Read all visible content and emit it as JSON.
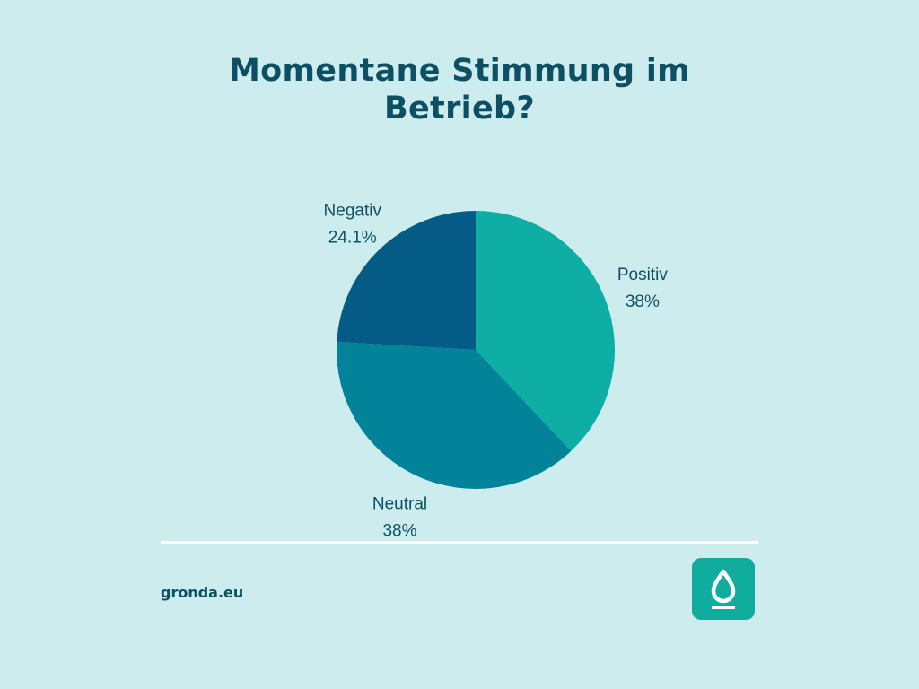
{
  "title": "Momentane Stimmung im Betrieb?",
  "brand": "gronda.eu",
  "icons": {
    "logo": "water-drop-icon"
  },
  "colors": {
    "background": "#cdeced",
    "text": "#0d5064",
    "positive": "#0eaea4",
    "neutral": "#02839a",
    "negative": "#035b86",
    "logo": "#10ad9e"
  },
  "chart_data": {
    "type": "pie",
    "title": "Momentane Stimmung im Betrieb?",
    "slices": [
      {
        "label": "Positiv",
        "value": 38,
        "value_label": "38%",
        "color": "#0eaea4"
      },
      {
        "label": "Neutral",
        "value": 38,
        "value_label": "38%",
        "color": "#02839a"
      },
      {
        "label": "Negativ",
        "value": 24.1,
        "value_label": "24.1%",
        "color": "#035b86"
      }
    ],
    "start_angle": "12 o'clock",
    "direction": "clockwise",
    "legend": "none"
  }
}
